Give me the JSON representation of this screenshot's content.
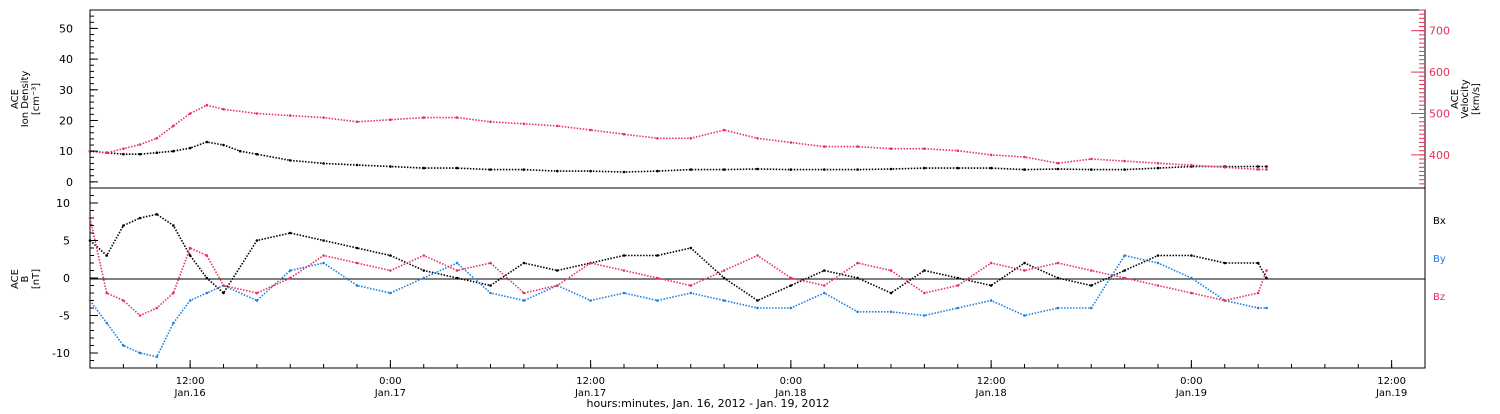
{
  "colors": {
    "black": "#000000",
    "red": "#e8305a",
    "blue": "#1a7fe0"
  },
  "chart_data": [
    {
      "type": "scatter",
      "panel": "top",
      "ylabel_left": [
        "ACE",
        "Ion Density",
        "[cm⁻³]"
      ],
      "ylabel_right": [
        "ACE",
        "Velocity",
        "[km/s]"
      ],
      "ylim_left": [
        -2,
        56
      ],
      "ylim_right": [
        320,
        750
      ],
      "yticks_left": [
        "0",
        "10",
        "20",
        "30",
        "40",
        "50"
      ],
      "yticks_right": [
        "400",
        "500",
        "600",
        "700"
      ],
      "series": [
        {
          "axis": "left",
          "color": "black",
          "x": [
            0,
            1,
            2,
            3,
            4,
            5,
            6,
            7,
            8,
            9,
            10,
            12,
            14,
            16,
            18,
            20,
            22,
            24,
            26,
            28,
            30,
            32,
            34,
            36,
            38,
            40,
            42,
            44,
            46,
            48,
            50,
            52,
            54,
            56,
            58,
            60,
            62,
            64,
            66,
            68,
            70,
            70.5
          ],
          "y": [
            10,
            9.5,
            9,
            9,
            9.5,
            10,
            11,
            13,
            12,
            10,
            9,
            7,
            6,
            5.5,
            5,
            4.5,
            4.5,
            4,
            4,
            3.5,
            3.5,
            3.2,
            3.5,
            4,
            4,
            4.2,
            4,
            4,
            4,
            4.2,
            4.5,
            4.5,
            4.5,
            4,
            4.2,
            4,
            4,
            4.5,
            5,
            5,
            5,
            5
          ]
        },
        {
          "axis": "right",
          "color": "red",
          "x": [
            0,
            1,
            2,
            3,
            4,
            5,
            6,
            7,
            8,
            10,
            12,
            14,
            16,
            18,
            20,
            22,
            24,
            26,
            28,
            30,
            32,
            34,
            36,
            38,
            40,
            42,
            44,
            46,
            48,
            50,
            52,
            54,
            56,
            58,
            60,
            62,
            64,
            66,
            68,
            70,
            70.5
          ],
          "y": [
            410,
            405,
            415,
            425,
            440,
            470,
            500,
            520,
            510,
            500,
            495,
            490,
            480,
            485,
            490,
            490,
            480,
            475,
            470,
            460,
            450,
            440,
            440,
            460,
            440,
            430,
            420,
            420,
            415,
            415,
            410,
            400,
            395,
            380,
            390,
            385,
            380,
            375,
            370,
            365,
            365
          ]
        }
      ]
    },
    {
      "type": "scatter",
      "panel": "bottom",
      "ylabel": [
        "ACE",
        "B",
        "[nT]"
      ],
      "ylim": [
        -12,
        12
      ],
      "yticks": [
        "-10",
        "-5",
        "0",
        "5",
        "10"
      ],
      "series": [
        {
          "name": "Bx",
          "color": "black",
          "x": [
            0,
            1,
            2,
            3,
            4,
            5,
            6,
            7,
            8,
            10,
            12,
            14,
            16,
            18,
            20,
            22,
            24,
            26,
            28,
            30,
            32,
            34,
            36,
            38,
            40,
            42,
            44,
            46,
            48,
            50,
            52,
            54,
            56,
            58,
            60,
            62,
            64,
            66,
            68,
            70,
            70.5
          ],
          "y": [
            5,
            3,
            7,
            8,
            8.5,
            7,
            3,
            0,
            -2,
            5,
            6,
            5,
            4,
            3,
            1,
            0,
            -1,
            2,
            1,
            2,
            3,
            3,
            4,
            0,
            -3,
            -1,
            1,
            0,
            -2,
            1,
            0,
            -1,
            2,
            0,
            -1,
            1,
            3,
            3,
            2,
            2,
            0
          ]
        },
        {
          "name": "By",
          "color": "blue",
          "x": [
            0,
            1,
            2,
            3,
            4,
            5,
            6,
            7,
            8,
            10,
            12,
            14,
            16,
            18,
            20,
            22,
            24,
            26,
            28,
            30,
            32,
            34,
            36,
            38,
            40,
            42,
            44,
            46,
            48,
            50,
            52,
            54,
            56,
            58,
            60,
            62,
            64,
            66,
            68,
            70,
            70.5
          ],
          "y": [
            -3,
            -6,
            -9,
            -10,
            -10.5,
            -6,
            -3,
            -2,
            -1,
            -3,
            1,
            2,
            -1,
            -2,
            0,
            2,
            -2,
            -3,
            -1,
            -3,
            -2,
            -3,
            -2,
            -3,
            -4,
            -4,
            -2,
            -4.5,
            -4.5,
            -5,
            -4,
            -3,
            -5,
            -4,
            -4,
            3,
            2,
            0,
            -3,
            -4,
            -4
          ]
        },
        {
          "name": "Bz",
          "color": "red",
          "x": [
            0,
            1,
            2,
            3,
            4,
            5,
            6,
            7,
            8,
            10,
            12,
            14,
            16,
            18,
            20,
            22,
            24,
            26,
            28,
            30,
            32,
            34,
            36,
            38,
            40,
            42,
            44,
            46,
            48,
            50,
            52,
            54,
            56,
            58,
            60,
            62,
            64,
            66,
            68,
            70,
            70.5
          ],
          "y": [
            8,
            -2,
            -3,
            -5,
            -4,
            -2,
            4,
            3,
            -1,
            -2,
            0,
            3,
            2,
            1,
            3,
            1,
            2,
            -2,
            -1,
            2,
            1,
            0,
            -1,
            1,
            3,
            0,
            -1,
            2,
            1,
            -2,
            -1,
            2,
            1,
            2,
            1,
            0,
            -1,
            -2,
            -3,
            -2,
            1
          ]
        }
      ]
    }
  ],
  "legend": {
    "bx": "Bx",
    "by": "By",
    "bz": "Bz"
  },
  "xaxis": {
    "ticks": [
      {
        "x": 6,
        "time": "12:00",
        "date": "Jan.16"
      },
      {
        "x": 18,
        "time": "0:00",
        "date": "Jan.17"
      },
      {
        "x": 30,
        "time": "12:00",
        "date": "Jan.17"
      },
      {
        "x": 42,
        "time": "0:00",
        "date": "Jan.18"
      },
      {
        "x": 54,
        "time": "12:00",
        "date": "Jan.18"
      },
      {
        "x": 66,
        "time": "0:00",
        "date": "Jan.19"
      },
      {
        "x": 78,
        "time": "12:00",
        "date": "Jan.19"
      }
    ],
    "xlim": [
      0,
      80
    ],
    "label": "hours:minutes, Jan. 16, 2012 - Jan. 19, 2012"
  }
}
